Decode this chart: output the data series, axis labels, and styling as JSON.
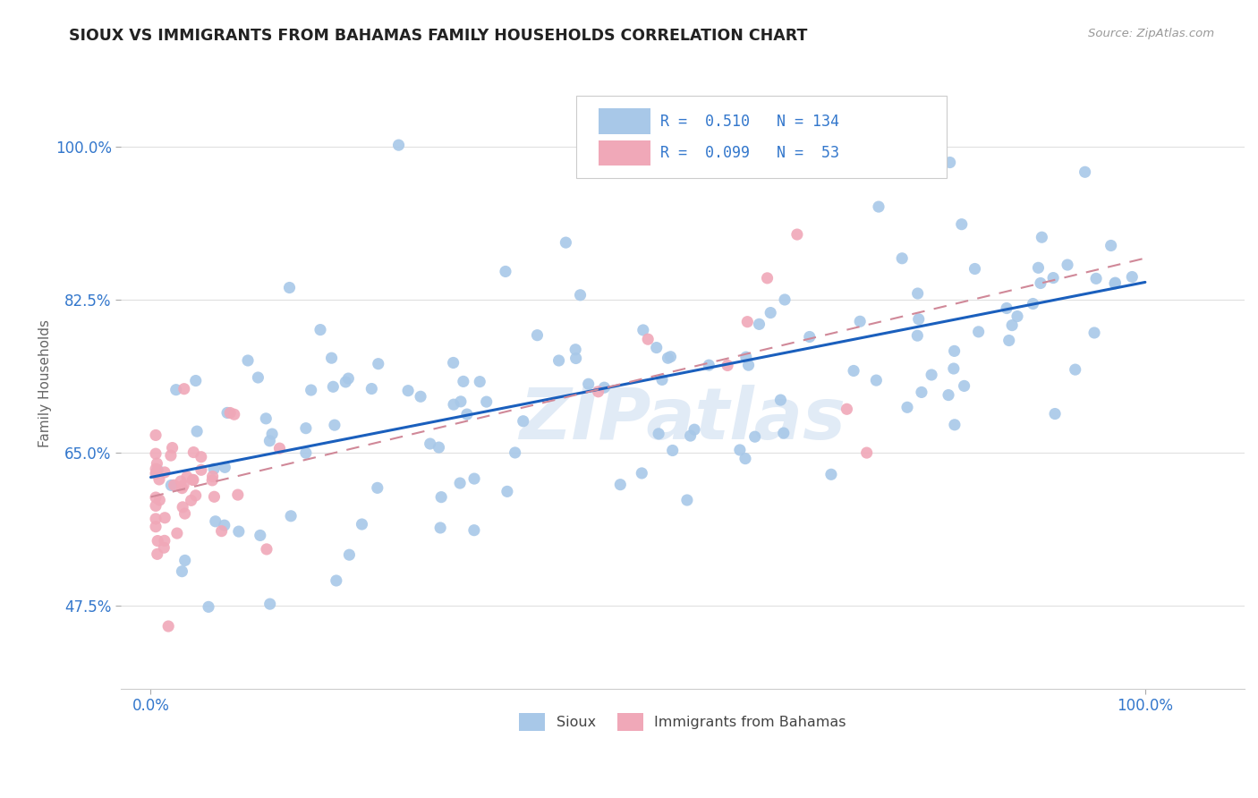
{
  "title": "SIOUX VS IMMIGRANTS FROM BAHAMAS FAMILY HOUSEHOLDS CORRELATION CHART",
  "source": "Source: ZipAtlas.com",
  "ylabel": "Family Households",
  "legend_labels": [
    "Sioux",
    "Immigrants from Bahamas"
  ],
  "sioux_R": 0.51,
  "sioux_N": 134,
  "bahamas_R": 0.099,
  "bahamas_N": 53,
  "sioux_color": "#a8c8e8",
  "bahamas_color": "#f0a8b8",
  "trend_sioux_color": "#1a5fbd",
  "trend_bahamas_color": "#d08898",
  "background_color": "#ffffff",
  "grid_color": "#e0e0e0",
  "title_color": "#222222",
  "axis_label_color": "#666666",
  "tick_label_color": "#3377cc",
  "yticks": [
    0.475,
    0.65,
    0.825,
    1.0
  ],
  "ytick_labels": [
    "47.5%",
    "65.0%",
    "82.5%",
    "100.0%"
  ],
  "xticks": [
    0.0,
    1.0
  ],
  "xtick_labels": [
    "0.0%",
    "100.0%"
  ],
  "y_min": 0.38,
  "y_max": 1.08,
  "x_min": -0.03,
  "x_max": 1.1
}
